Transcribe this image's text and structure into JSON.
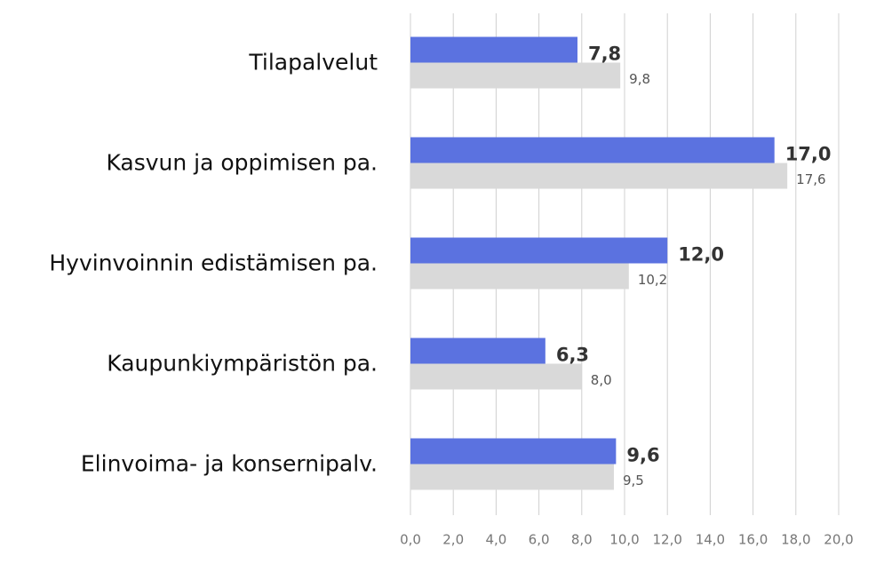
{
  "chart_data": {
    "type": "bar",
    "orientation": "horizontal",
    "categories": [
      "Tilapalvelut",
      "Kasvun ja oppimisen pa.",
      "Hyvinvoinnin edistämisen pa.",
      "Kaupunkiympäristön pa.",
      "Elinvoima- ja konsernipalv."
    ],
    "series": [
      {
        "color": "#5b72e0",
        "values": [
          7.8,
          17.0,
          12.0,
          6.3,
          9.6
        ],
        "value_labels": [
          "7,8",
          "17,0",
          "12,0",
          "6,3",
          "9,6"
        ]
      },
      {
        "color": "#d9d9d9",
        "values": [
          9.8,
          17.6,
          10.2,
          8.0,
          9.5
        ],
        "value_labels": [
          "9,8",
          "17,6",
          "10,2",
          "8,0",
          "9,5"
        ]
      }
    ],
    "xlim": [
      0,
      20
    ],
    "xticks": [
      {
        "value": 0,
        "label": "0,0"
      },
      {
        "value": 2,
        "label": "2,0"
      },
      {
        "value": 4,
        "label": "4,0"
      },
      {
        "value": 6,
        "label": "6,0"
      },
      {
        "value": 8,
        "label": "8,0"
      },
      {
        "value": 10,
        "label": "10,0"
      },
      {
        "value": 12,
        "label": "12,0"
      },
      {
        "value": 14,
        "label": "14,0"
      },
      {
        "value": 16,
        "label": "16,0"
      },
      {
        "value": 18,
        "label": "18,0"
      },
      {
        "value": 20,
        "label": "20,0"
      }
    ],
    "grid": true
  }
}
